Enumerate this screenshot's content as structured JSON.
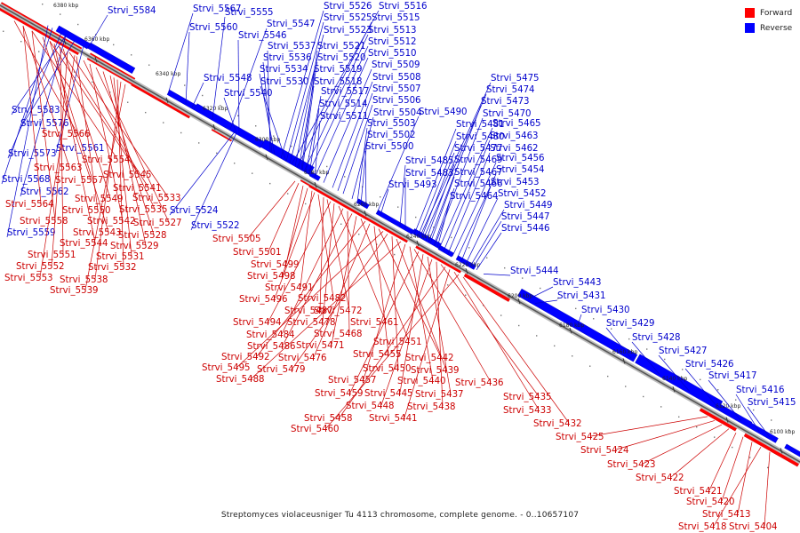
{
  "caption": "Streptomyces violaceusniger Tu 4113 chromosome, complete genome. - 0..10657107",
  "legend": [
    {
      "label": "Forward",
      "color": "#ff0000"
    },
    {
      "label": "Reverse",
      "color": "#0000ff"
    }
  ],
  "ticks": [
    "6380 kbp",
    "6360 kbp",
    "6340 kbp",
    "6320 kbp",
    "6300 kbp",
    "6280 kbp",
    "6260 kbp",
    "6240 kbp",
    "6220 kbp",
    "6200 kbp",
    "6180 kbp",
    "6160 kbp",
    "6140 kbp",
    "6120 kbp",
    "6100 kbp"
  ],
  "reverse_labels": [
    "Strvi_5584",
    "Strvi_5567",
    "Strvi_5555",
    "Strvi_5547",
    "Strvi_5560",
    "Strvi_5546",
    "Strvi_5526",
    "Strvi_5516",
    "Strvi_5525",
    "Strvi_5515",
    "Strvi_5523",
    "Strvi_5513",
    "Strvi_5512",
    "Strvi_5537",
    "Strvi_5521",
    "Strvi_5536",
    "Strvi_5520",
    "Strvi_5510",
    "Strvi_5534",
    "Strvi_5519",
    "Strvi_5509",
    "Strvi_5530",
    "Strvi_5518",
    "Strvi_5548",
    "Strvi_5508",
    "Strvi_5517",
    "Strvi_5507",
    "Strvi_5540",
    "Strvi_5514",
    "Strvi_5506",
    "Strvi_5511",
    "Strvi_5504",
    "Strvi_5490",
    "Strvi_5503",
    "Strvi_5502",
    "Strvi_5500",
    "Strvi_5583",
    "Strvi_5576",
    "Strvi_5573",
    "Strvi_5561",
    "Strvi_5568",
    "Strvi_5562",
    "Strvi_5559",
    "Strvi_5524",
    "Strvi_5522",
    "Strvi_5475",
    "Strvi_5474",
    "Strvi_5473",
    "Strvi_5470",
    "Strvi_5481",
    "Strvi_5465",
    "Strvi_5480",
    "Strvi_5463",
    "Strvi_5477",
    "Strvi_5462",
    "Strvi_5485",
    "Strvi_5469",
    "Strvi_5456",
    "Strvi_5483",
    "Strvi_5467",
    "Strvi_5454",
    "Strvi_5466",
    "Strvi_5453",
    "Strvi_5493",
    "Strvi_5464",
    "Strvi_5452",
    "Strvi_5449",
    "Strvi_5447",
    "Strvi_5446",
    "Strvi_5444",
    "Strvi_5443",
    "Strvi_5431",
    "Strvi_5430",
    "Strvi_5429",
    "Strvi_5428",
    "Strvi_5427",
    "Strvi_5426",
    "Strvi_5417",
    "Strvi_5416",
    "Strvi_5415"
  ],
  "forward_labels": [
    "Strvi_5566",
    "Strvi_5563",
    "Strvi_5554",
    "Strvi_5557",
    "Strvi_5545",
    "Strvi_5541",
    "Strvi_5549",
    "Strvi_5533",
    "Strvi_5564",
    "Strvi_5550",
    "Strvi_5535",
    "Strvi_5558",
    "Strvi_5542",
    "Strvi_5527",
    "Strvi_5543",
    "Strvi_5528",
    "Strvi_5544",
    "Strvi_5529",
    "Strvi_5551",
    "Strvi_5531",
    "Strvi_5552",
    "Strvi_5532",
    "Strvi_5553",
    "Strvi_5538",
    "Strvi_5539",
    "Strvi_5505",
    "Strvi_5501",
    "Strvi_5499",
    "Strvi_5498",
    "Strvi_5491",
    "Strvi_5496",
    "Strvi_5482",
    "Strvi_5487",
    "Strvi_5472",
    "Strvi_5494",
    "Strvi_5478",
    "Strvi_5461",
    "Strvi_5484",
    "Strvi_5468",
    "Strvi_5486",
    "Strvi_5471",
    "Strvi_5451",
    "Strvi_5492",
    "Strvi_5476",
    "Strvi_5455",
    "Strvi_5442",
    "Strvi_5495",
    "Strvi_5479",
    "Strvi_5450",
    "Strvi_5439",
    "Strvi_5488",
    "Strvi_5457",
    "Strvi_5440",
    "Strvi_5436",
    "Strvi_5459",
    "Strvi_5445",
    "Strvi_5437",
    "Strvi_5448",
    "Strvi_5438",
    "Strvi_5435",
    "Strvi_5458",
    "Strvi_5441",
    "Strvi_5433",
    "Strvi_5460",
    "Strvi_5432",
    "Strvi_5425",
    "Strvi_5424",
    "Strvi_5423",
    "Strvi_5422",
    "Strvi_5421",
    "Strvi_5420",
    "Strvi_5413",
    "Strvi_5418",
    "Strvi_5404"
  ]
}
